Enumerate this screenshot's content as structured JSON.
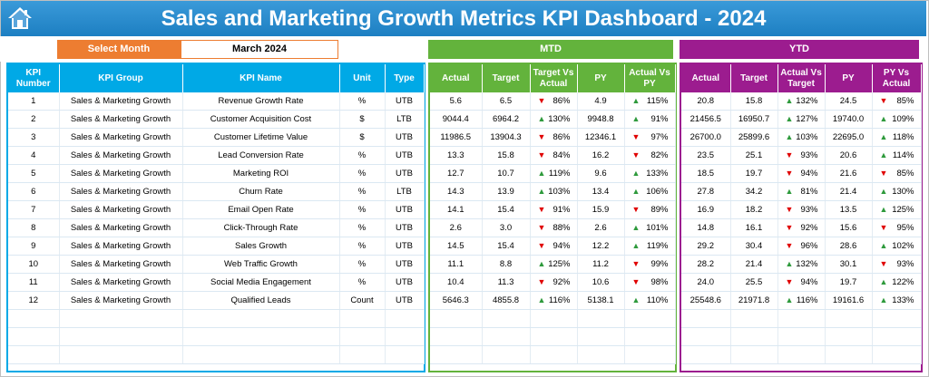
{
  "title": "Sales and Marketing Growth Metrics KPI Dashboard - 2024",
  "filter": {
    "label": "Select Month",
    "value": "March 2024"
  },
  "sections": {
    "mtd": "MTD",
    "ytd": "YTD"
  },
  "colors": {
    "title_bar": "#1d7fc2",
    "filter_label": "#ed7d31",
    "left_header": "#00a9e6",
    "mtd": "#63b33c",
    "ytd": "#9c1c8f",
    "up": "#2e9a3c",
    "down": "#e00000"
  },
  "headers": {
    "left": [
      "KPI Number",
      "KPI Group",
      "KPI Name",
      "Unit",
      "Type"
    ],
    "mtd": [
      "Actual",
      "Target",
      "Target Vs Actual",
      "PY",
      "Actual Vs PY"
    ],
    "ytd": [
      "Actual",
      "Target",
      "Actual Vs Target",
      "PY",
      "PY Vs Actual"
    ]
  },
  "rows": [
    {
      "num": "1",
      "group": "Sales & Marketing Growth",
      "name": "Revenue Growth Rate",
      "unit": "%",
      "type": "UTB",
      "mtd": {
        "actual": "5.6",
        "target": "6.5",
        "tva": "86%",
        "tva_dir": "down",
        "py": "4.9",
        "avp": "115%",
        "avp_dir": "up"
      },
      "ytd": {
        "actual": "20.8",
        "target": "15.8",
        "avt": "132%",
        "avt_dir": "up",
        "py": "24.5",
        "pva": "85%",
        "pva_dir": "down"
      }
    },
    {
      "num": "2",
      "group": "Sales & Marketing Growth",
      "name": "Customer Acquisition Cost",
      "unit": "$",
      "type": "LTB",
      "mtd": {
        "actual": "9044.4",
        "target": "6964.2",
        "tva": "130%",
        "tva_dir": "up",
        "py": "9948.8",
        "avp": "91%",
        "avp_dir": "up"
      },
      "ytd": {
        "actual": "21456.5",
        "target": "16950.7",
        "avt": "127%",
        "avt_dir": "up",
        "py": "19740.0",
        "pva": "109%",
        "pva_dir": "up"
      }
    },
    {
      "num": "3",
      "group": "Sales & Marketing Growth",
      "name": "Customer Lifetime Value",
      "unit": "$",
      "type": "UTB",
      "mtd": {
        "actual": "11986.5",
        "target": "13904.3",
        "tva": "86%",
        "tva_dir": "down",
        "py": "12346.1",
        "avp": "97%",
        "avp_dir": "down"
      },
      "ytd": {
        "actual": "26700.0",
        "target": "25899.6",
        "avt": "103%",
        "avt_dir": "up",
        "py": "22695.0",
        "pva": "118%",
        "pva_dir": "up"
      }
    },
    {
      "num": "4",
      "group": "Sales & Marketing Growth",
      "name": "Lead Conversion Rate",
      "unit": "%",
      "type": "UTB",
      "mtd": {
        "actual": "13.3",
        "target": "15.8",
        "tva": "84%",
        "tva_dir": "down",
        "py": "16.2",
        "avp": "82%",
        "avp_dir": "down"
      },
      "ytd": {
        "actual": "23.5",
        "target": "25.1",
        "avt": "93%",
        "avt_dir": "down",
        "py": "20.6",
        "pva": "114%",
        "pva_dir": "up"
      }
    },
    {
      "num": "5",
      "group": "Sales & Marketing Growth",
      "name": "Marketing ROI",
      "unit": "%",
      "type": "UTB",
      "mtd": {
        "actual": "12.7",
        "target": "10.7",
        "tva": "119%",
        "tva_dir": "up",
        "py": "9.6",
        "avp": "133%",
        "avp_dir": "up"
      },
      "ytd": {
        "actual": "18.5",
        "target": "19.7",
        "avt": "94%",
        "avt_dir": "down",
        "py": "21.6",
        "pva": "85%",
        "pva_dir": "down"
      }
    },
    {
      "num": "6",
      "group": "Sales & Marketing Growth",
      "name": "Churn Rate",
      "unit": "%",
      "type": "LTB",
      "mtd": {
        "actual": "14.3",
        "target": "13.9",
        "tva": "103%",
        "tva_dir": "up",
        "py": "13.4",
        "avp": "106%",
        "avp_dir": "up"
      },
      "ytd": {
        "actual": "27.8",
        "target": "34.2",
        "avt": "81%",
        "avt_dir": "up",
        "py": "21.4",
        "pva": "130%",
        "pva_dir": "up"
      }
    },
    {
      "num": "7",
      "group": "Sales & Marketing Growth",
      "name": "Email Open Rate",
      "unit": "%",
      "type": "UTB",
      "mtd": {
        "actual": "14.1",
        "target": "15.4",
        "tva": "91%",
        "tva_dir": "down",
        "py": "15.9",
        "avp": "89%",
        "avp_dir": "down"
      },
      "ytd": {
        "actual": "16.9",
        "target": "18.2",
        "avt": "93%",
        "avt_dir": "down",
        "py": "13.5",
        "pva": "125%",
        "pva_dir": "up"
      }
    },
    {
      "num": "8",
      "group": "Sales & Marketing Growth",
      "name": "Click-Through Rate",
      "unit": "%",
      "type": "UTB",
      "mtd": {
        "actual": "2.6",
        "target": "3.0",
        "tva": "88%",
        "tva_dir": "down",
        "py": "2.6",
        "avp": "101%",
        "avp_dir": "up"
      },
      "ytd": {
        "actual": "14.8",
        "target": "16.1",
        "avt": "92%",
        "avt_dir": "down",
        "py": "15.6",
        "pva": "95%",
        "pva_dir": "down"
      }
    },
    {
      "num": "9",
      "group": "Sales & Marketing Growth",
      "name": "Sales Growth",
      "unit": "%",
      "type": "UTB",
      "mtd": {
        "actual": "14.5",
        "target": "15.4",
        "tva": "94%",
        "tva_dir": "down",
        "py": "12.2",
        "avp": "119%",
        "avp_dir": "up"
      },
      "ytd": {
        "actual": "29.2",
        "target": "30.4",
        "avt": "96%",
        "avt_dir": "down",
        "py": "28.6",
        "pva": "102%",
        "pva_dir": "up"
      }
    },
    {
      "num": "10",
      "group": "Sales & Marketing Growth",
      "name": "Web Traffic Growth",
      "unit": "%",
      "type": "UTB",
      "mtd": {
        "actual": "11.1",
        "target": "8.8",
        "tva": "125%",
        "tva_dir": "up",
        "py": "11.2",
        "avp": "99%",
        "avp_dir": "down"
      },
      "ytd": {
        "actual": "28.2",
        "target": "21.4",
        "avt": "132%",
        "avt_dir": "up",
        "py": "30.1",
        "pva": "93%",
        "pva_dir": "down"
      }
    },
    {
      "num": "11",
      "group": "Sales & Marketing Growth",
      "name": "Social Media Engagement",
      "unit": "%",
      "type": "UTB",
      "mtd": {
        "actual": "10.4",
        "target": "11.3",
        "tva": "92%",
        "tva_dir": "down",
        "py": "10.6",
        "avp": "98%",
        "avp_dir": "down"
      },
      "ytd": {
        "actual": "24.0",
        "target": "25.5",
        "avt": "94%",
        "avt_dir": "down",
        "py": "19.7",
        "pva": "122%",
        "pva_dir": "up"
      }
    },
    {
      "num": "12",
      "group": "Sales & Marketing Growth",
      "name": "Qualified Leads",
      "unit": "Count",
      "type": "UTB",
      "mtd": {
        "actual": "5646.3",
        "target": "4855.8",
        "tva": "116%",
        "tva_dir": "up",
        "py": "5138.1",
        "avp": "110%",
        "avp_dir": "up"
      },
      "ytd": {
        "actual": "25548.6",
        "target": "21971.8",
        "avt": "116%",
        "avt_dir": "up",
        "py": "19161.6",
        "pva": "133%",
        "pva_dir": "up"
      }
    }
  ]
}
